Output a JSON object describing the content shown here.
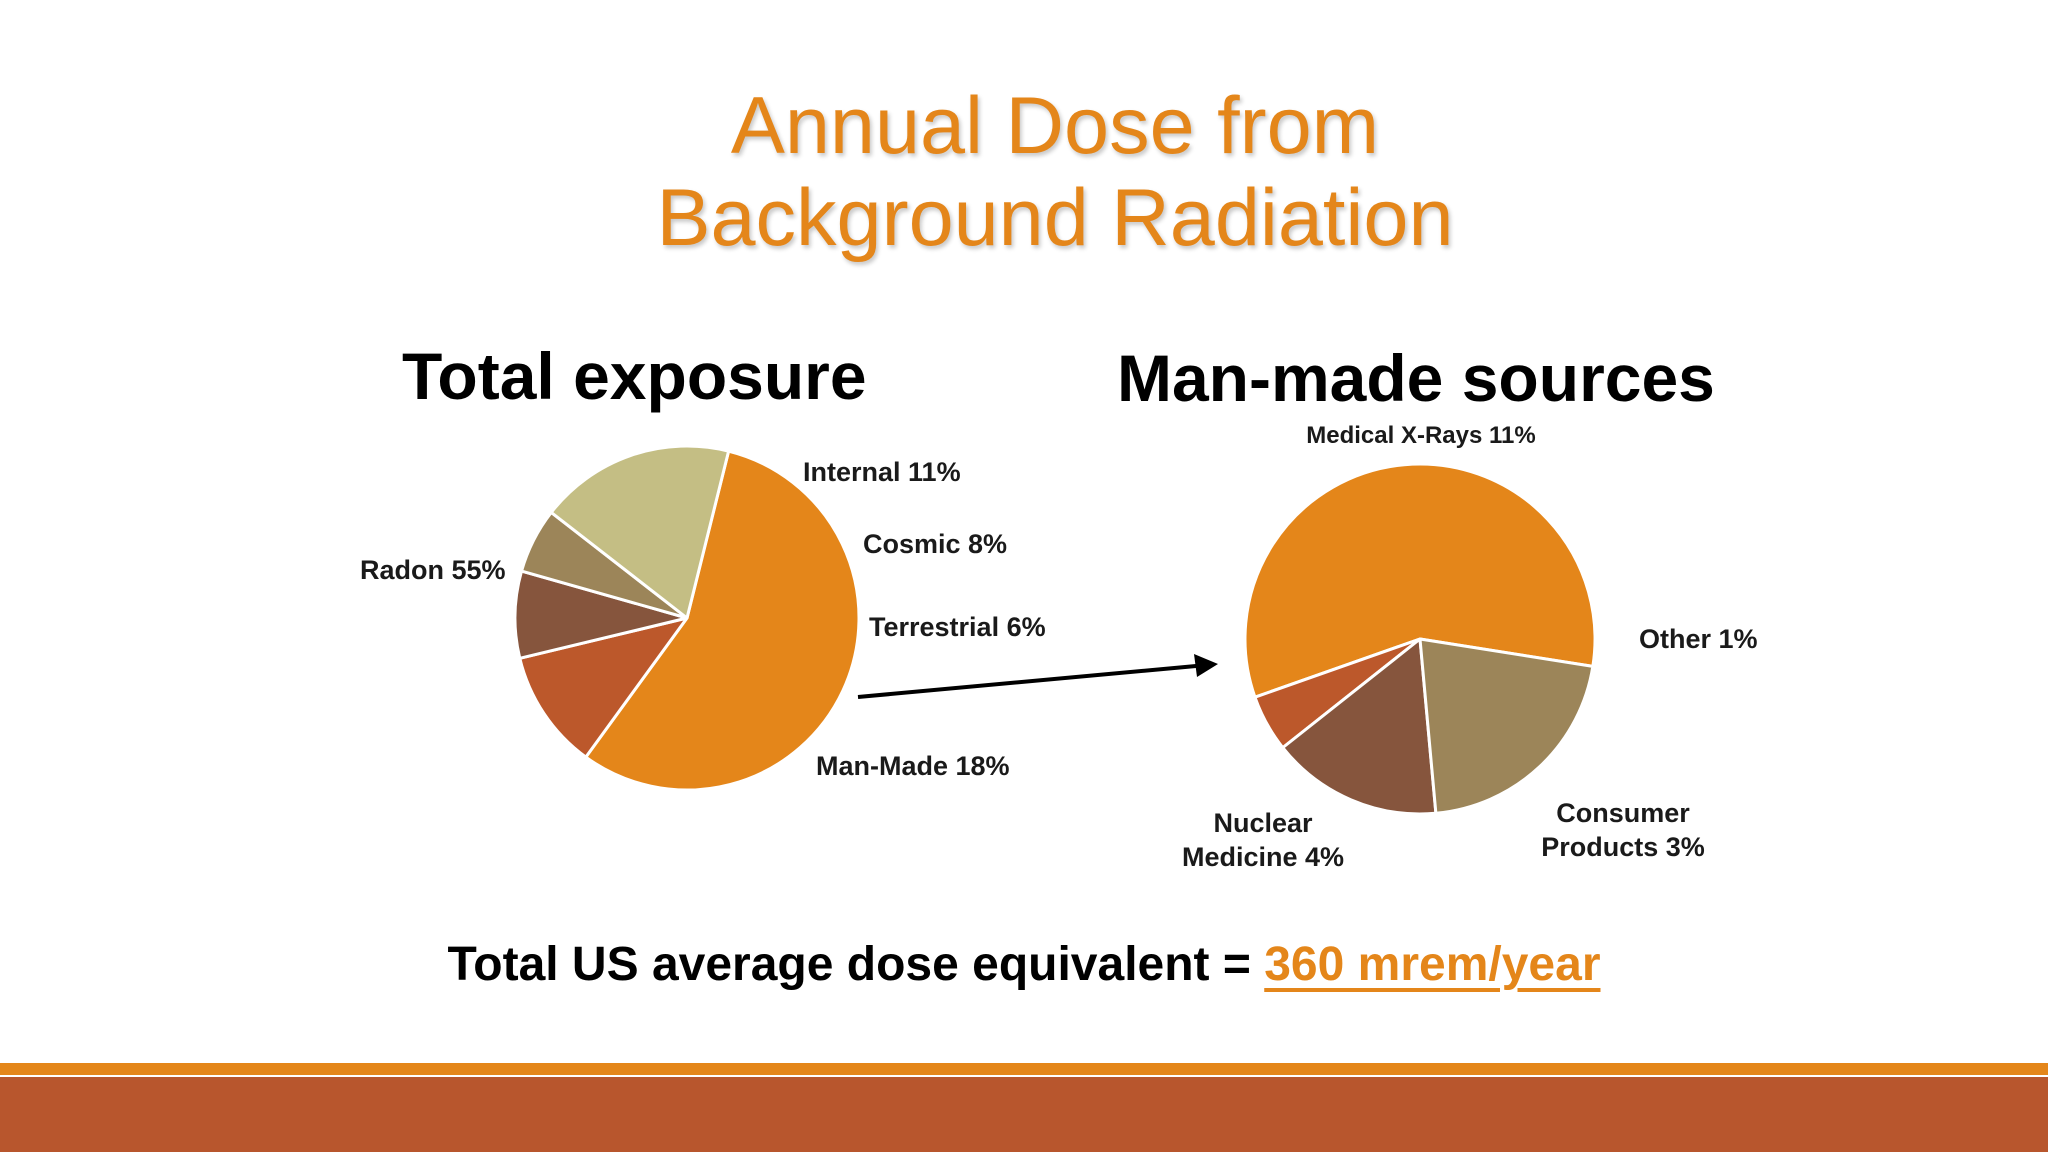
{
  "slide": {
    "title_line1": "Annual Dose from",
    "title_line2": "Background Radiation",
    "footer_prefix": "Total US average dose equivalent = ",
    "footer_value": "360 mrem/year"
  },
  "colors": {
    "title": "#E4861A",
    "band_thin": "#E4861A",
    "band_thick": "#B8562D"
  },
  "chart_data": [
    {
      "type": "pie",
      "title": "Total exposure",
      "slices": [
        {
          "label": "Radon 55%",
          "value": 55,
          "color": "#E4861A"
        },
        {
          "label": "Internal 11%",
          "value": 11,
          "color": "#BC582B"
        },
        {
          "label": "Cosmic 8%",
          "value": 8,
          "color": "#86553D"
        },
        {
          "label": "Terrestrial 6%",
          "value": 6,
          "color": "#9C8559"
        },
        {
          "label": "Man-Made 18%",
          "value": 18,
          "color": "#C4BE84"
        }
      ]
    },
    {
      "type": "pie",
      "title": "Man-made sources",
      "slices": [
        {
          "label": "Medical X-Rays 11%",
          "value": 11,
          "color": "#E4861A"
        },
        {
          "label": "Other 1%",
          "value": 1,
          "color": "#BC582B"
        },
        {
          "label": "Consumer Products 3%",
          "value": 3,
          "color": "#86553D"
        },
        {
          "label": "Nuclear Medicine 4%",
          "value": 4,
          "color": "#9C8559"
        }
      ]
    }
  ]
}
